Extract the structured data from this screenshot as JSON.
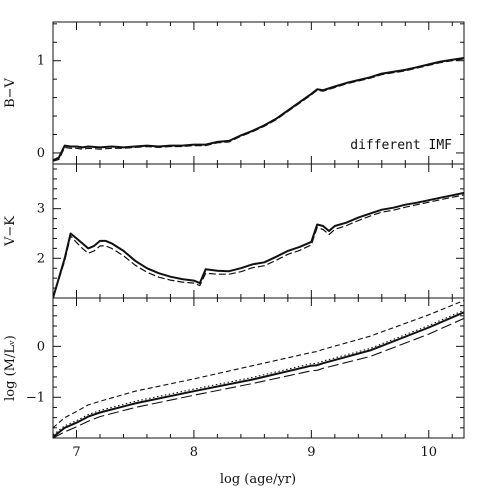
{
  "figure": {
    "xlabel": "log (age/yr)",
    "x_tick_labels": [
      "7",
      "8",
      "9",
      "10"
    ]
  },
  "chart_data": [
    {
      "type": "line",
      "panel": "top",
      "ylabel": "B−V",
      "annotation": "different IMF",
      "xlim": [
        6.8,
        10.3
      ],
      "ylim": [
        -0.12,
        1.42
      ],
      "y_ticks": [
        0,
        1
      ],
      "y_tick_labels": [
        "0",
        "1"
      ],
      "series": [
        {
          "style": "solid",
          "color": "#111111",
          "x": [
            6.8,
            6.85,
            6.9,
            6.95,
            7.0,
            7.05,
            7.1,
            7.2,
            7.3,
            7.4,
            7.5,
            7.6,
            7.7,
            7.8,
            7.9,
            8.0,
            8.1,
            8.2,
            8.3,
            8.4,
            8.5,
            8.6,
            8.7,
            8.8,
            8.9,
            9.0,
            9.05,
            9.1,
            9.2,
            9.3,
            9.4,
            9.5,
            9.6,
            9.7,
            9.8,
            9.9,
            10.0,
            10.1,
            10.2,
            10.3
          ],
          "y": [
            -0.08,
            -0.05,
            0.08,
            0.07,
            0.07,
            0.06,
            0.07,
            0.06,
            0.07,
            0.06,
            0.07,
            0.08,
            0.07,
            0.08,
            0.08,
            0.09,
            0.09,
            0.12,
            0.13,
            0.19,
            0.24,
            0.3,
            0.37,
            0.46,
            0.55,
            0.64,
            0.69,
            0.68,
            0.72,
            0.76,
            0.79,
            0.82,
            0.86,
            0.88,
            0.9,
            0.93,
            0.96,
            0.99,
            1.01,
            1.03
          ]
        },
        {
          "style": "dashed",
          "color": "#111111",
          "x": [
            6.8,
            6.85,
            6.9,
            6.95,
            7.0,
            7.05,
            7.1,
            7.2,
            7.3,
            7.4,
            7.5,
            7.6,
            7.7,
            7.8,
            7.9,
            8.0,
            8.1,
            8.2,
            8.3,
            8.4,
            8.5,
            8.6,
            8.7,
            8.8,
            8.9,
            9.0,
            9.05,
            9.1,
            9.2,
            9.3,
            9.4,
            9.5,
            9.6,
            9.7,
            9.8,
            9.9,
            10.0,
            10.1,
            10.2,
            10.3
          ],
          "y": [
            -0.09,
            -0.07,
            0.06,
            0.05,
            0.05,
            0.04,
            0.05,
            0.04,
            0.05,
            0.05,
            0.06,
            0.07,
            0.06,
            0.07,
            0.07,
            0.08,
            0.08,
            0.11,
            0.12,
            0.18,
            0.23,
            0.29,
            0.36,
            0.45,
            0.54,
            0.63,
            0.68,
            0.67,
            0.71,
            0.75,
            0.78,
            0.81,
            0.85,
            0.87,
            0.89,
            0.92,
            0.95,
            0.98,
            1.0,
            1.02
          ]
        }
      ]
    },
    {
      "type": "line",
      "panel": "middle",
      "ylabel": "V−K",
      "xlim": [
        6.8,
        10.3
      ],
      "ylim": [
        1.2,
        3.9
      ],
      "y_ticks": [
        2,
        3
      ],
      "y_tick_labels": [
        "2",
        "3"
      ],
      "series": [
        {
          "style": "solid",
          "color": "#111111",
          "x": [
            6.8,
            6.9,
            6.95,
            7.0,
            7.05,
            7.1,
            7.15,
            7.2,
            7.25,
            7.3,
            7.4,
            7.5,
            7.6,
            7.7,
            7.8,
            7.9,
            8.0,
            8.05,
            8.1,
            8.2,
            8.3,
            8.4,
            8.5,
            8.6,
            8.7,
            8.8,
            8.9,
            9.0,
            9.05,
            9.1,
            9.15,
            9.2,
            9.3,
            9.4,
            9.5,
            9.6,
            9.7,
            9.8,
            9.9,
            10.0,
            10.1,
            10.2,
            10.3
          ],
          "y": [
            1.2,
            2.0,
            2.5,
            2.4,
            2.3,
            2.2,
            2.25,
            2.35,
            2.35,
            2.3,
            2.15,
            1.95,
            1.8,
            1.7,
            1.63,
            1.58,
            1.55,
            1.5,
            1.78,
            1.75,
            1.74,
            1.8,
            1.88,
            1.92,
            2.03,
            2.15,
            2.23,
            2.33,
            2.68,
            2.65,
            2.55,
            2.65,
            2.72,
            2.82,
            2.9,
            2.98,
            3.02,
            3.08,
            3.12,
            3.17,
            3.22,
            3.27,
            3.32
          ]
        },
        {
          "style": "dashed",
          "color": "#111111",
          "x": [
            6.8,
            6.9,
            6.95,
            7.0,
            7.05,
            7.1,
            7.15,
            7.2,
            7.25,
            7.3,
            7.4,
            7.5,
            7.6,
            7.7,
            7.8,
            7.9,
            8.0,
            8.05,
            8.1,
            8.2,
            8.3,
            8.4,
            8.5,
            8.6,
            8.7,
            8.8,
            8.9,
            9.0,
            9.05,
            9.1,
            9.15,
            9.2,
            9.3,
            9.4,
            9.5,
            9.6,
            9.7,
            9.8,
            9.9,
            10.0,
            10.1,
            10.2,
            10.3
          ],
          "y": [
            1.2,
            1.95,
            2.45,
            2.32,
            2.2,
            2.1,
            2.15,
            2.25,
            2.25,
            2.2,
            2.05,
            1.86,
            1.72,
            1.62,
            1.56,
            1.52,
            1.5,
            1.45,
            1.7,
            1.68,
            1.68,
            1.73,
            1.81,
            1.85,
            1.96,
            2.08,
            2.16,
            2.27,
            2.62,
            2.58,
            2.48,
            2.58,
            2.66,
            2.76,
            2.85,
            2.93,
            2.97,
            3.03,
            3.08,
            3.13,
            3.18,
            3.23,
            3.28
          ]
        }
      ]
    },
    {
      "type": "line",
      "panel": "bottom",
      "ylabel": "log (M/Lᵥ)",
      "xlim": [
        6.8,
        10.3
      ],
      "ylim": [
        -1.8,
        0.95
      ],
      "y_ticks": [
        -1,
        0
      ],
      "y_tick_labels": [
        "−1",
        "0"
      ],
      "series": [
        {
          "style": "solid",
          "color": "#111111",
          "x": [
            6.8,
            6.9,
            7.0,
            7.1,
            7.2,
            7.5,
            8.0,
            8.5,
            9.0,
            9.05,
            9.1,
            9.5,
            10.0,
            10.3
          ],
          "y": [
            -1.78,
            -1.6,
            -1.5,
            -1.38,
            -1.3,
            -1.12,
            -0.88,
            -0.65,
            -0.38,
            -0.37,
            -0.33,
            -0.08,
            0.37,
            0.67
          ]
        },
        {
          "style": "dotted",
          "color": "#111111",
          "x": [
            6.8,
            6.9,
            7.0,
            7.1,
            7.2,
            7.5,
            8.0,
            8.5,
            9.0,
            9.05,
            9.1,
            9.5,
            10.0,
            10.3
          ],
          "y": [
            -1.74,
            -1.56,
            -1.46,
            -1.34,
            -1.26,
            -1.08,
            -0.84,
            -0.61,
            -0.34,
            -0.33,
            -0.29,
            -0.04,
            0.41,
            0.71
          ]
        },
        {
          "style": "short-dash",
          "color": "#111111",
          "x": [
            6.8,
            6.9,
            7.0,
            7.1,
            7.2,
            7.5,
            8.0,
            8.5,
            9.0,
            9.05,
            9.1,
            9.5,
            10.0,
            10.3
          ],
          "y": [
            -1.6,
            -1.4,
            -1.28,
            -1.15,
            -1.08,
            -0.88,
            -0.64,
            -0.38,
            -0.12,
            -0.1,
            -0.06,
            0.2,
            0.62,
            0.9
          ]
        },
        {
          "style": "long-dash",
          "color": "#111111",
          "x": [
            6.8,
            6.9,
            7.0,
            7.1,
            7.2,
            7.5,
            8.0,
            8.5,
            9.0,
            9.05,
            9.1,
            9.5,
            10.0,
            10.3
          ],
          "y": [
            -1.8,
            -1.68,
            -1.58,
            -1.47,
            -1.38,
            -1.2,
            -0.96,
            -0.73,
            -0.48,
            -0.47,
            -0.43,
            -0.2,
            0.24,
            0.55
          ]
        }
      ]
    }
  ]
}
